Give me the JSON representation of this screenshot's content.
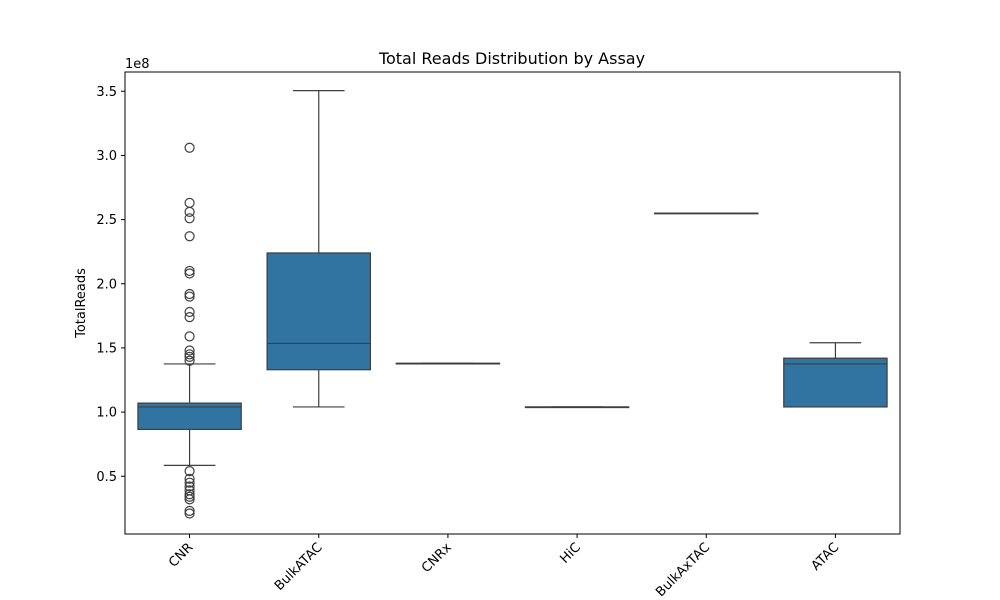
{
  "chart_data": {
    "type": "box",
    "title": "Total Reads Distribution by Assay",
    "xlabel": "",
    "ylabel": "TotalReads",
    "y_multiplier_label": "1e8",
    "ylim": [
      0.05,
      3.65
    ],
    "yticks": [
      0.5,
      1.0,
      1.5,
      2.0,
      2.5,
      3.0,
      3.5
    ],
    "ytick_labels": [
      "0.5",
      "1.0",
      "1.5",
      "2.0",
      "2.5",
      "3.0",
      "3.5"
    ],
    "x_tick_rotation_deg": 45,
    "grid": false,
    "box_color": "#3274a1",
    "line_color": "#3f3f3f",
    "categories": [
      "CNR",
      "BulkATAC",
      "CNRx",
      "HiC",
      "BulkAxTAC",
      "ATAC"
    ],
    "boxes": [
      {
        "category": "CNR",
        "whisker_low": 0.585,
        "q1": 0.865,
        "median": 1.04,
        "q3": 1.07,
        "whisker_high": 1.375,
        "outliers": [
          3.06,
          2.63,
          2.56,
          2.51,
          2.37,
          2.1,
          2.08,
          1.92,
          1.9,
          1.78,
          1.74,
          1.59,
          1.48,
          1.45,
          1.43,
          1.4,
          0.54,
          0.48,
          0.45,
          0.42,
          0.39,
          0.36,
          0.34,
          0.32,
          0.23,
          0.21
        ]
      },
      {
        "category": "BulkATAC",
        "whisker_low": 1.04,
        "q1": 1.33,
        "median": 1.535,
        "q3": 2.24,
        "whisker_high": 3.505,
        "outliers": []
      },
      {
        "category": "CNRx",
        "whisker_low": 1.38,
        "q1": 1.38,
        "median": 1.38,
        "q3": 1.38,
        "whisker_high": 1.38,
        "outliers": []
      },
      {
        "category": "HiC",
        "whisker_low": 1.04,
        "q1": 1.04,
        "median": 1.04,
        "q3": 1.04,
        "whisker_high": 1.04,
        "outliers": []
      },
      {
        "category": "BulkAxTAC",
        "whisker_low": 2.55,
        "q1": 2.55,
        "median": 2.55,
        "q3": 2.55,
        "whisker_high": 2.55,
        "outliers": []
      },
      {
        "category": "ATAC",
        "whisker_low": 1.04,
        "q1": 1.04,
        "median": 1.375,
        "q3": 1.42,
        "whisker_high": 1.54,
        "outliers": []
      }
    ]
  }
}
